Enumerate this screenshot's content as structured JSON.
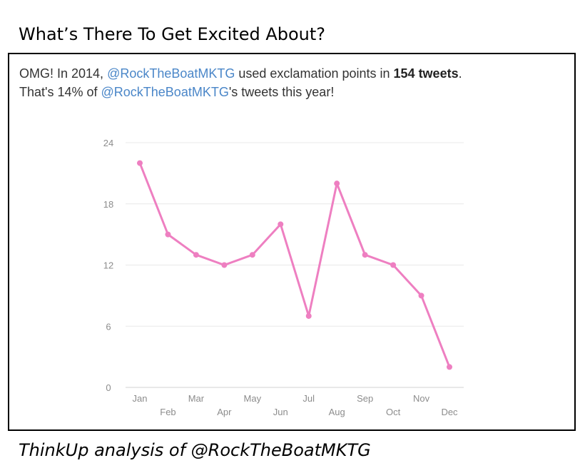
{
  "slide": {
    "title": "What’s There To Get Excited About?",
    "caption": "ThinkUp analysis of @RockTheBoatMKTG"
  },
  "insight": {
    "line1_prefix": "OMG! In 2014, ",
    "handle": "@RockTheBoatMKTG",
    "line1_middle": " used exclamation points in ",
    "count_text": "154 tweets",
    "line1_suffix": ".",
    "line2_prefix": "That's 14% of ",
    "line2_suffix": "'s tweets this year!"
  },
  "colors": {
    "line": "#ee7fc1",
    "grid": "#e8e8e8",
    "handle": "#4a86c8"
  },
  "chart_data": {
    "type": "line",
    "categories": [
      "Jan",
      "Feb",
      "Mar",
      "Apr",
      "May",
      "Jun",
      "Jul",
      "Aug",
      "Sep",
      "Oct",
      "Nov",
      "Dec"
    ],
    "series": [
      {
        "values": [
          22,
          15,
          13,
          12,
          13,
          16,
          7,
          20,
          13,
          12,
          9,
          2
        ]
      }
    ],
    "yticks": [
      0,
      6,
      12,
      18,
      24
    ],
    "ylim": [
      0,
      24
    ],
    "grid": true,
    "legend": "none"
  }
}
